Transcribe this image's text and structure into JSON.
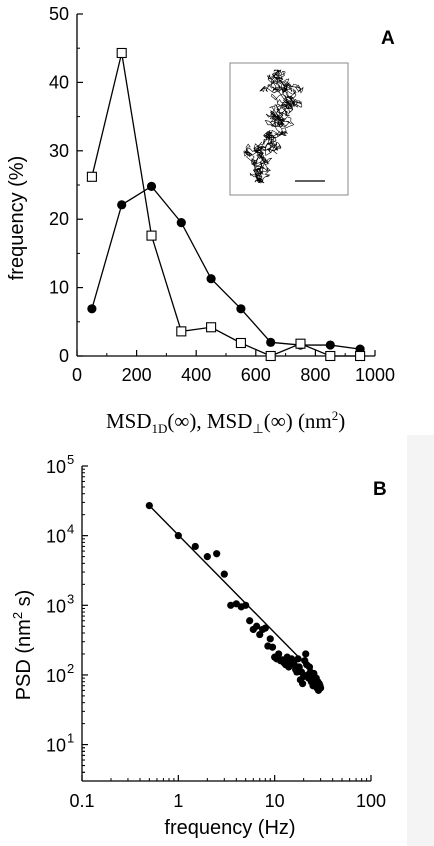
{
  "chart_data": [
    {
      "panel": "A",
      "type": "line",
      "xlabel_parts": {
        "a1": "MSD",
        "a2": "1D",
        "a3": "(∞), MSD",
        "a4": "⊥",
        "a5": "(∞) (nm",
        "a6": "2",
        "a7": ")"
      },
      "ylabel": "frequency (%)",
      "xlim": [
        0,
        1000
      ],
      "ylim": [
        0,
        50
      ],
      "x_ticks": [
        "0",
        "200",
        "400",
        "600",
        "800",
        "1000"
      ],
      "y_ticks": [
        "0",
        "10",
        "20",
        "30",
        "40",
        "50"
      ],
      "series": [
        {
          "marker": "filled-circle",
          "x": [
            50,
            150,
            250,
            350,
            450,
            550,
            650,
            750,
            850,
            950
          ],
          "y": [
            6.9,
            22.1,
            24.8,
            19.5,
            11.3,
            6.9,
            2.0,
            1.6,
            1.6,
            1.0
          ]
        },
        {
          "marker": "open-square",
          "x": [
            50,
            150,
            250,
            350,
            450,
            550,
            650,
            750,
            850,
            950
          ],
          "y": [
            26.2,
            44.3,
            17.6,
            3.6,
            4.2,
            1.9,
            0.0,
            1.8,
            0.0,
            0.0
          ]
        }
      ],
      "inset": "trajectory"
    },
    {
      "panel": "B",
      "type": "scatter",
      "xlabel": "frequency (Hz)",
      "ylabel_parts": {
        "b1": "PSD (nm",
        "b2": "2",
        "b3": " s)"
      },
      "xscale": "log",
      "yscale": "log",
      "xlim": [
        0.1,
        100
      ],
      "ylim": [
        3,
        100000
      ],
      "x_ticks": [
        "0.1",
        "1",
        "10",
        "100"
      ],
      "y_ticks": [
        {
          "base": "10",
          "exp": "1"
        },
        {
          "base": "10",
          "exp": "2"
        },
        {
          "base": "10",
          "exp": "3"
        },
        {
          "base": "10",
          "exp": "4"
        },
        {
          "base": "10",
          "exp": "5"
        }
      ],
      "points": [
        [
          0.5,
          27000
        ],
        [
          1.0,
          10000
        ],
        [
          1.5,
          7000
        ],
        [
          2.0,
          5000
        ],
        [
          2.5,
          5500
        ],
        [
          3.0,
          2800
        ],
        [
          3.5,
          1000
        ],
        [
          4.0,
          1050
        ],
        [
          4.5,
          950
        ],
        [
          5.0,
          1000
        ],
        [
          5.5,
          600
        ],
        [
          6.0,
          450
        ],
        [
          6.5,
          500
        ],
        [
          7.0,
          380
        ],
        [
          7.5,
          450
        ],
        [
          8.0,
          470
        ],
        [
          8.5,
          260
        ],
        [
          9.0,
          330
        ],
        [
          9.5,
          250
        ],
        [
          10.0,
          180
        ],
        [
          10.5,
          170
        ],
        [
          11.0,
          200
        ],
        [
          11.5,
          160
        ],
        [
          12.0,
          165
        ],
        [
          12.5,
          150
        ],
        [
          13.0,
          140
        ],
        [
          13.5,
          180
        ],
        [
          14.0,
          130
        ],
        [
          14.5,
          160
        ],
        [
          15.0,
          170
        ],
        [
          15.5,
          150
        ],
        [
          16.0,
          140
        ],
        [
          16.5,
          120
        ],
        [
          17.0,
          110
        ],
        [
          17.5,
          170
        ],
        [
          18.0,
          130
        ],
        [
          18.5,
          85
        ],
        [
          19.0,
          110
        ],
        [
          19.5,
          75
        ],
        [
          20.0,
          95
        ],
        [
          20.5,
          160
        ],
        [
          21.0,
          200
        ],
        [
          21.5,
          140
        ],
        [
          22.0,
          100
        ],
        [
          22.5,
          90
        ],
        [
          23.0,
          130
        ],
        [
          23.5,
          110
        ],
        [
          24.0,
          80
        ],
        [
          24.5,
          95
        ],
        [
          25.0,
          70
        ],
        [
          25.5,
          105
        ],
        [
          26.0,
          85
        ],
        [
          26.5,
          75
        ],
        [
          27.0,
          90
        ],
        [
          27.5,
          65
        ],
        [
          28.0,
          80
        ],
        [
          28.5,
          60
        ],
        [
          29.0,
          75
        ],
        [
          29.5,
          70
        ],
        [
          30.0,
          65
        ]
      ],
      "fit_line": {
        "x": [
          0.5,
          28
        ],
        "y": [
          27000,
          95
        ]
      }
    }
  ]
}
